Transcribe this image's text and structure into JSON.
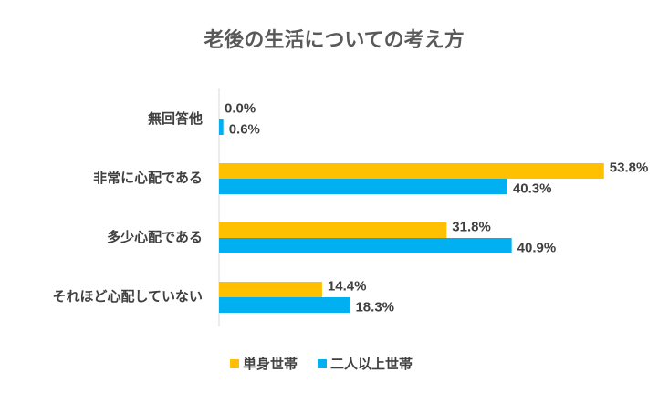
{
  "chart_data": {
    "type": "bar",
    "orientation": "horizontal",
    "title": "老後の生活についての考え方",
    "categories": [
      "無回答他",
      "非常に心配である",
      "多少心配である",
      "それほど心配していない"
    ],
    "series": [
      {
        "name": "単身世帯",
        "color": "#FFC000",
        "values": [
          0.0,
          53.8,
          31.8,
          14.4
        ],
        "value_labels": [
          "0.0%",
          "53.8%",
          "31.8%",
          "14.4%"
        ]
      },
      {
        "name": "二人以上世帯",
        "color": "#00B0F0",
        "values": [
          0.6,
          40.3,
          40.9,
          18.3
        ],
        "value_labels": [
          "0.6%",
          "40.3%",
          "40.9%",
          "18.3%"
        ]
      }
    ],
    "legend": "bottom"
  }
}
